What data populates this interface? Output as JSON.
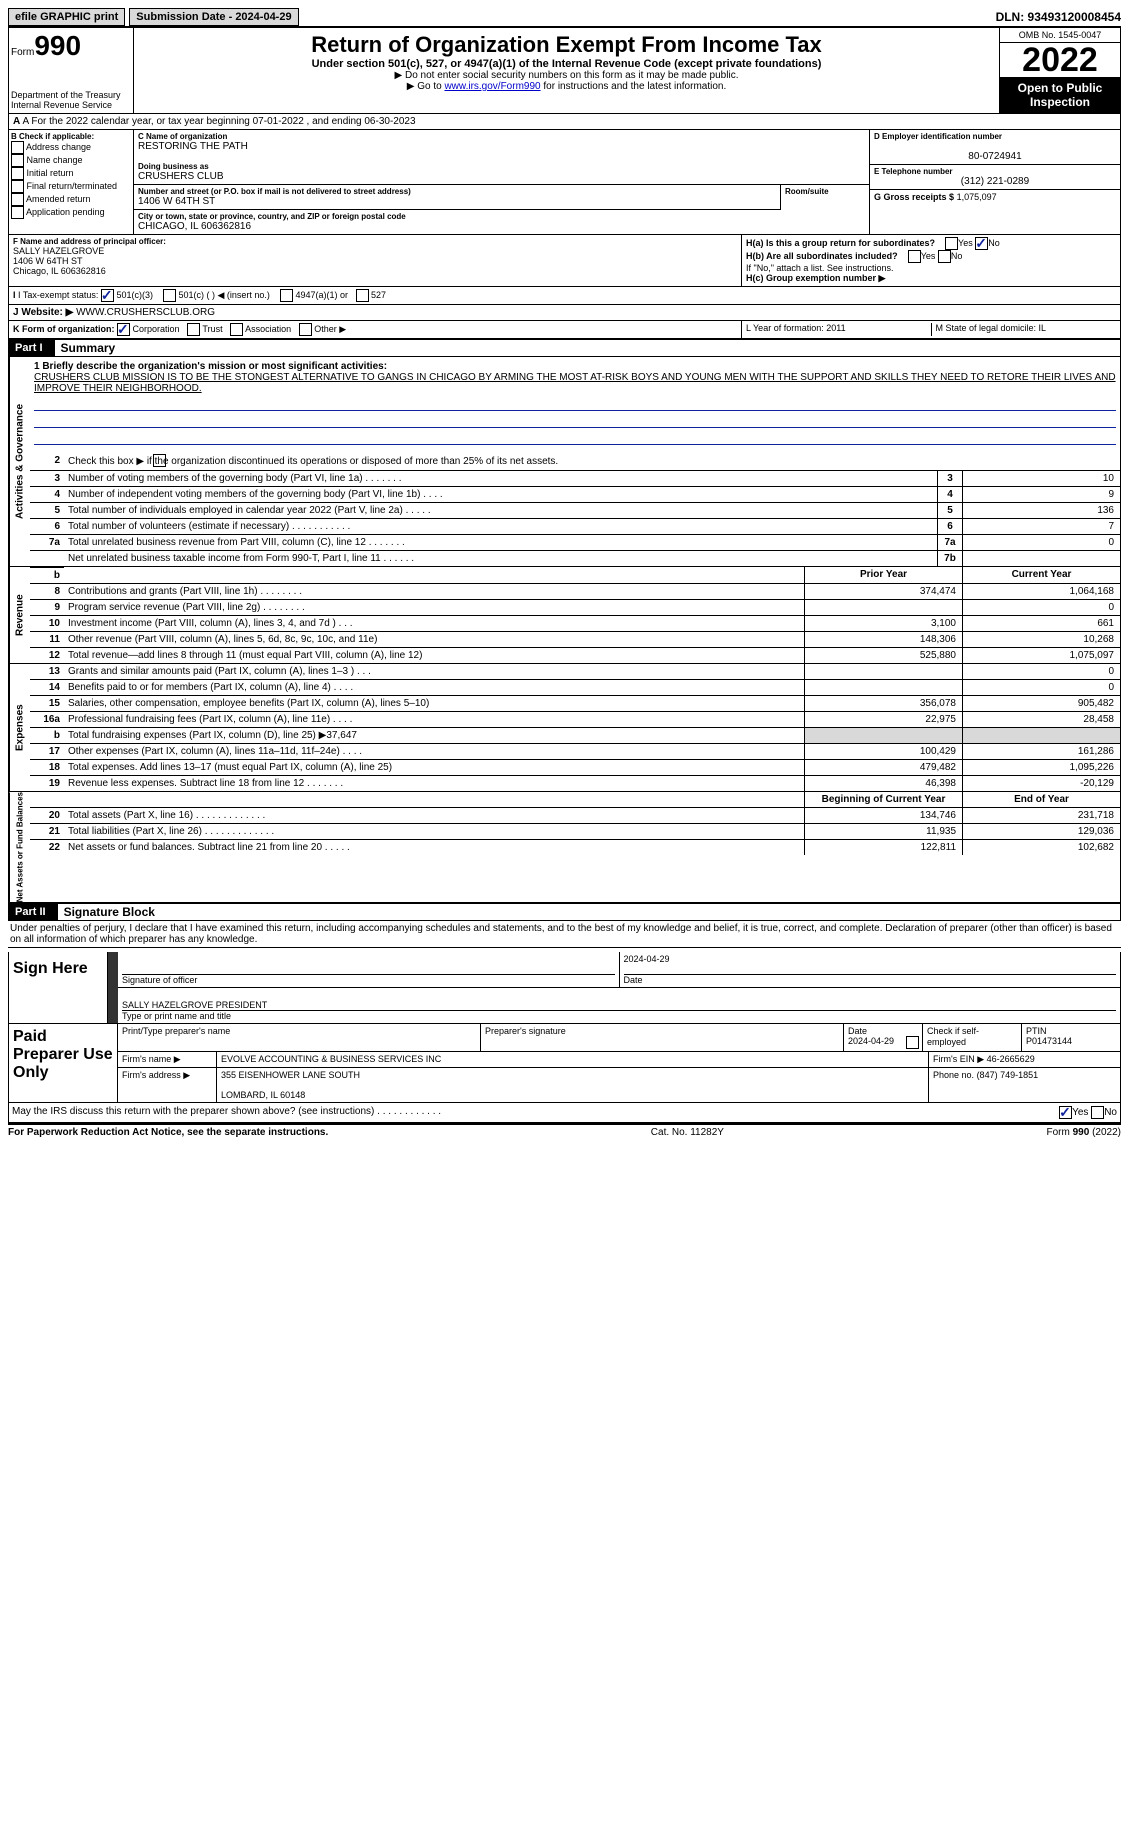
{
  "topbar": {
    "efile": "efile GRAPHIC print",
    "submission": "Submission Date - 2024-04-29",
    "dln": "DLN: 93493120008454"
  },
  "header": {
    "form_prefix": "Form",
    "form_num": "990",
    "dept": "Department of the Treasury\nInternal Revenue Service",
    "title": "Return of Organization Exempt From Income Tax",
    "subtitle": "Under section 501(c), 527, or 4947(a)(1) of the Internal Revenue Code (except private foundations)",
    "hint1": "▶ Do not enter social security numbers on this form as it may be made public.",
    "hint2_pre": "▶ Go to ",
    "hint2_link": "www.irs.gov/Form990",
    "hint2_post": " for instructions and the latest information.",
    "omb": "OMB No. 1545-0047",
    "year": "2022",
    "otp": "Open to Public Inspection"
  },
  "lineA": "A For the 2022 calendar year, or tax year beginning 07-01-2022    , and ending 06-30-2023",
  "colB": {
    "label": "B Check if applicable:",
    "opts": [
      "Address change",
      "Name change",
      "Initial return",
      "Final return/terminated",
      "Amended return",
      "Application pending"
    ]
  },
  "colC": {
    "name_lbl": "C Name of organization",
    "name": "RESTORING THE PATH",
    "dba_lbl": "Doing business as",
    "dba": "CRUSHERS CLUB",
    "addr_lbl": "Number and street (or P.O. box if mail is not delivered to street address)",
    "room_lbl": "Room/suite",
    "addr": "1406 W 64TH ST",
    "city_lbl": "City or town, state or province, country, and ZIP or foreign postal code",
    "city": "CHICAGO, IL  606362816"
  },
  "colDE": {
    "d_lbl": "D Employer identification number",
    "d_val": "80-0724941",
    "e_lbl": "E Telephone number",
    "e_val": "(312) 221-0289",
    "g_lbl": "G Gross receipts $",
    "g_val": "1,075,097"
  },
  "rowF": {
    "f_lbl": "F Name and address of principal officer:",
    "f_name": "SALLY HAZELGROVE",
    "f_addr": "1406 W 64TH ST\nChicago, IL  606362816",
    "ha": "H(a)  Is this a group return for subordinates?",
    "hb": "H(b)  Are all subordinates included?",
    "hb_note": "If \"No,\" attach a list. See instructions.",
    "hc": "H(c)  Group exemption number ▶"
  },
  "lineI": {
    "label": "I  Tax-exempt status:",
    "opts": [
      "501(c)(3)",
      "501(c) (   ) ◀ (insert no.)",
      "4947(a)(1) or",
      "527"
    ]
  },
  "lineJ": {
    "label": "J Website: ▶",
    "val": "  WWW.CRUSHERSCLUB.ORG"
  },
  "lineK": {
    "label": "K Form of organization:",
    "opts": [
      "Corporation",
      "Trust",
      "Association",
      "Other ▶"
    ],
    "l": "L Year of formation: 2011",
    "m": "M State of legal domicile: IL"
  },
  "part1": {
    "num": "Part I",
    "title": "Summary"
  },
  "summary": {
    "br1": "1  Briefly describe the organization's mission or most significant activities:",
    "mission": "CRUSHERS CLUB MISSION IS TO BE THE STONGEST ALTERNATIVE TO GANGS IN CHICAGO BY ARMING THE MOST AT-RISK BOYS AND YOUNG MEN WITH THE SUPPORT AND SKILLS THEY NEED TO RETORE THEIR LIVES AND IMPROVE THEIR NEIGHBORHOOD.",
    "line2": "Check this box ▶        if the organization discontinued its operations or disposed of more than 25% of its net assets.",
    "sidelabels": {
      "ag": "Activities & Governance",
      "rev": "Revenue",
      "exp": "Expenses",
      "na": "Net Assets or Fund Balances"
    },
    "rows_ag": [
      {
        "n": "3",
        "d": "Number of voting members of the governing body (Part VI, line 1a)   .    .    .    .    .    .    .",
        "b": "3",
        "v": "10"
      },
      {
        "n": "4",
        "d": "Number of independent voting members of the governing body (Part VI, line 1b)   .    .    .    .",
        "b": "4",
        "v": "9"
      },
      {
        "n": "5",
        "d": "Total number of individuals employed in calendar year 2022 (Part V, line 2a)   .    .    .    .    .",
        "b": "5",
        "v": "136"
      },
      {
        "n": "6",
        "d": "Total number of volunteers (estimate if necessary)    .    .    .    .    .    .    .    .    .    .    .",
        "b": "6",
        "v": "7"
      },
      {
        "n": "7a",
        "d": "Total unrelated business revenue from Part VIII, column (C), line 12    .    .    .    .    .    .    .",
        "b": "7a",
        "v": "0"
      },
      {
        "n": "",
        "d": "Net unrelated business taxable income from Form 990-T, Part I, line 11   .    .    .    .    .    .",
        "b": "7b",
        "v": ""
      }
    ],
    "hdr_prior": "Prior Year",
    "hdr_curr": "Current Year",
    "rows_rev": [
      {
        "n": "8",
        "d": "Contributions and grants (Part VIII, line 1h)   .    .    .    .    .    .    .    .",
        "p": "374,474",
        "c": "1,064,168"
      },
      {
        "n": "9",
        "d": "Program service revenue (Part VIII, line 2g)   .    .    .    .    .    .    .    .",
        "p": "",
        "c": "0"
      },
      {
        "n": "10",
        "d": "Investment income (Part VIII, column (A), lines 3, 4, and 7d )    .    .    .",
        "p": "3,100",
        "c": "661"
      },
      {
        "n": "11",
        "d": "Other revenue (Part VIII, column (A), lines 5, 6d, 8c, 9c, 10c, and 11e)",
        "p": "148,306",
        "c": "10,268"
      },
      {
        "n": "12",
        "d": "Total revenue—add lines 8 through 11 (must equal Part VIII, column (A), line 12)",
        "p": "525,880",
        "c": "1,075,097"
      }
    ],
    "rows_exp": [
      {
        "n": "13",
        "d": "Grants and similar amounts paid (Part IX, column (A), lines 1–3 )   .    .    .",
        "p": "",
        "c": "0"
      },
      {
        "n": "14",
        "d": "Benefits paid to or for members (Part IX, column (A), line 4)   .    .    .    .",
        "p": "",
        "c": "0"
      },
      {
        "n": "15",
        "d": "Salaries, other compensation, employee benefits (Part IX, column (A), lines 5–10)",
        "p": "356,078",
        "c": "905,482"
      },
      {
        "n": "16a",
        "d": "Professional fundraising fees (Part IX, column (A), line 11e)   .    .    .    .",
        "p": "22,975",
        "c": "28,458"
      },
      {
        "n": "b",
        "d": "Total fundraising expenses (Part IX, column (D), line 25) ▶37,647",
        "p": "shade",
        "c": "shade"
      },
      {
        "n": "17",
        "d": "Other expenses (Part IX, column (A), lines 11a–11d, 11f–24e)   .    .    .    .",
        "p": "100,429",
        "c": "161,286"
      },
      {
        "n": "18",
        "d": "Total expenses. Add lines 13–17 (must equal Part IX, column (A), line 25)",
        "p": "479,482",
        "c": "1,095,226"
      },
      {
        "n": "19",
        "d": "Revenue less expenses. Subtract line 18 from line 12   .    .    .    .    .    .    .",
        "p": "46,398",
        "c": "-20,129"
      }
    ],
    "hdr_beg": "Beginning of Current Year",
    "hdr_end": "End of Year",
    "rows_na": [
      {
        "n": "20",
        "d": "Total assets (Part X, line 16)   .    .    .    .    .    .    .    .    .    .    .    .    .",
        "p": "134,746",
        "c": "231,718"
      },
      {
        "n": "21",
        "d": "Total liabilities (Part X, line 26)   .    .    .    .    .    .    .    .    .    .    .    .    .",
        "p": "11,935",
        "c": "129,036"
      },
      {
        "n": "22",
        "d": "Net assets or fund balances. Subtract line 21 from line 20   .    .    .    .    .",
        "p": "122,811",
        "c": "102,682"
      }
    ]
  },
  "part2": {
    "num": "Part II",
    "title": "Signature Block"
  },
  "perjury": "Under penalties of perjury, I declare that I have examined this return, including accompanying schedules and statements, and to the best of my knowledge and belief, it is true, correct, and complete. Declaration of preparer (other than officer) is based on all information of which preparer has any knowledge.",
  "sign": {
    "label": "Sign Here",
    "sig_of": "Signature of officer",
    "date": "2024-04-29",
    "name": "SALLY HAZELGROVE  PRESIDENT",
    "name_lbl": "Type or print name and title"
  },
  "paid": {
    "label": "Paid Preparer Use Only",
    "r1": {
      "c1": "Print/Type preparer's name",
      "c2": "Preparer's signature",
      "c3": "Date\n2024-04-29",
      "c4": "Check         if self-employed",
      "c5": "PTIN\nP01473144"
    },
    "r2": {
      "c1": "Firm's name      ▶",
      "c2": "EVOLVE ACCOUNTING & BUSINESS SERVICES INC",
      "c3": "Firm's EIN ▶",
      "c4": "46-2665629"
    },
    "r3": {
      "c1": "Firm's address ▶",
      "c2": "355 EISENHOWER LANE SOUTH\n\nLOMBARD, IL  60148",
      "c3": "Phone no.",
      "c4": "(847) 749-1851"
    }
  },
  "irs_discuss": "May the IRS discuss this return with the preparer shown above? (see instructions)   .    .    .    .    .    .    .    .    .    .    .    .",
  "footer": {
    "l": "For Paperwork Reduction Act Notice, see the separate instructions.",
    "m": "Cat. No. 11282Y",
    "r": "Form 990 (2022)"
  },
  "colors": {
    "link": "#0000cc",
    "black": "#000000",
    "checkblue": "#10239e",
    "shade": "#d9d9d9"
  }
}
